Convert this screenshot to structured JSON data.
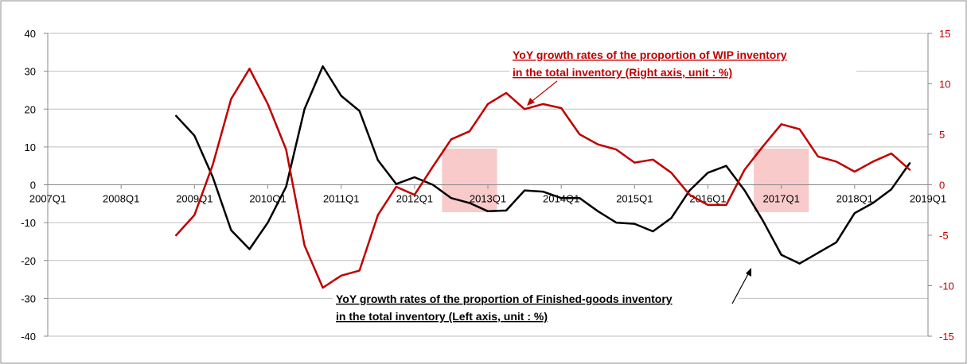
{
  "chart_data": {
    "type": "line",
    "title": "",
    "x_labels": [
      "2007Q1",
      "2008Q1",
      "2009Q1",
      "2010Q1",
      "2011Q1",
      "2012Q1",
      "2013Q1",
      "2014Q1",
      "2015Q1",
      "2016Q1",
      "2017Q1",
      "2018Q1",
      "2019Q1"
    ],
    "left_axis": {
      "min": -40,
      "max": 40,
      "ticks": [
        40,
        30,
        20,
        10,
        0,
        -10,
        -20,
        -30,
        -40
      ]
    },
    "right_axis": {
      "min": -15,
      "max": 15,
      "ticks": [
        15,
        10,
        5,
        0,
        -5,
        -10,
        -15
      ],
      "color": "#c00000"
    },
    "series": [
      {
        "name": "YoY growth rates of the proportion of Finished-goods inventory in the total inventory",
        "axis": "left",
        "color": "#000000",
        "start_index": 7,
        "values": [
          18.2,
          13.0,
          2.0,
          -12.0,
          -17.0,
          -10.0,
          -0.5,
          20.0,
          31.3,
          23.5,
          19.5,
          6.5,
          0.2,
          2.0,
          0.0,
          -3.5,
          -4.8,
          -7.0,
          -6.8,
          -1.5,
          -1.8,
          -3.5,
          -3.5,
          -7.0,
          -10.0,
          -10.3,
          -12.3,
          -8.8,
          -1.5,
          3.2,
          5.0,
          -1.5,
          -9.5,
          -18.5,
          -20.8,
          -18.0,
          -15.2,
          -7.5,
          -4.8,
          -1.2,
          5.7
        ]
      },
      {
        "name": "YoY growth rates of the proportion of WIP inventory in the total inventory",
        "axis": "right",
        "color": "#c00000",
        "start_index": 7,
        "values": [
          -5.0,
          -3.0,
          2.0,
          8.5,
          11.5,
          8.0,
          3.5,
          -6.0,
          -10.2,
          -9.0,
          -8.5,
          -3.0,
          -0.2,
          -1.0,
          1.8,
          4.5,
          5.3,
          8.0,
          9.1,
          7.5,
          8.0,
          7.6,
          5.0,
          4.0,
          3.5,
          2.2,
          2.5,
          1.2,
          -1.0,
          -2.0,
          -2.0,
          1.5,
          3.8,
          6.0,
          5.5,
          2.8,
          2.3,
          1.3,
          2.3,
          3.1,
          1.5
        ]
      }
    ],
    "annotations": {
      "wip_line1": "YoY  growth rates of the proportion of WIP inventory",
      "wip_line2": "in the total inventory (Right axis, unit : %)",
      "fg_line1": "YoY  growth rates of the proportion of Finished-goods inventory",
      "fg_line2": "in the total inventory (Left axis, unit : %)"
    },
    "highlighted_periods": [
      {
        "from_index": 21.5,
        "to_index": 24.5
      },
      {
        "from_index": 38.5,
        "to_index": 41.5
      }
    ]
  }
}
